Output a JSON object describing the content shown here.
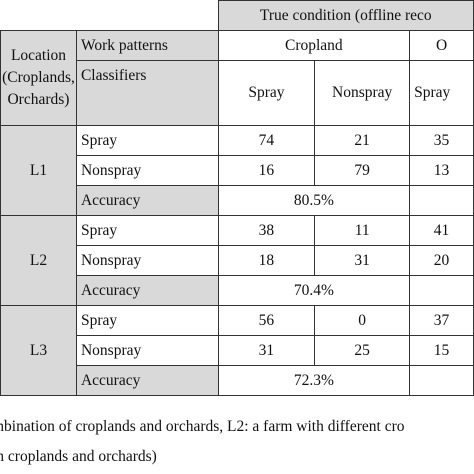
{
  "header": {
    "true_condition": "True condition (offline reco",
    "location_line1": "Location",
    "location_line2": "(Croplands,",
    "location_line3": "Orchards)",
    "work_patterns": "Work patterns",
    "classifiers": "Classifiers",
    "cropland": "Cropland",
    "orchard_partial": "O",
    "spray": "Spray",
    "nonspray": "Nonspray",
    "spray_partial": "Spray"
  },
  "groups": [
    {
      "location": "L1",
      "rows": [
        {
          "label": "Spray",
          "spray": "74",
          "nonspray": "21",
          "next": "35"
        },
        {
          "label": "Nonspray",
          "spray": "16",
          "nonspray": "79",
          "next": "13"
        }
      ],
      "accuracy_label": "Accuracy",
      "accuracy": "80.5%"
    },
    {
      "location": "L2",
      "rows": [
        {
          "label": "Spray",
          "spray": "38",
          "nonspray": "11",
          "next": "41"
        },
        {
          "label": "Nonspray",
          "spray": "18",
          "nonspray": "31",
          "next": "20"
        }
      ],
      "accuracy_label": "Accuracy",
      "accuracy": "70.4%"
    },
    {
      "location": "L3",
      "rows": [
        {
          "label": "Spray",
          "spray": "56",
          "nonspray": "0",
          "next": "37"
        },
        {
          "label": "Nonspray",
          "spray": "31",
          "nonspray": "25",
          "next": "15"
        }
      ],
      "accuracy_label": "Accuracy",
      "accuracy": "72.3%"
    }
  ],
  "footnote": {
    "line1": "mbination of croplands and orchards, L2: a farm with different cro",
    "line2": "th croplands and orchards)"
  }
}
